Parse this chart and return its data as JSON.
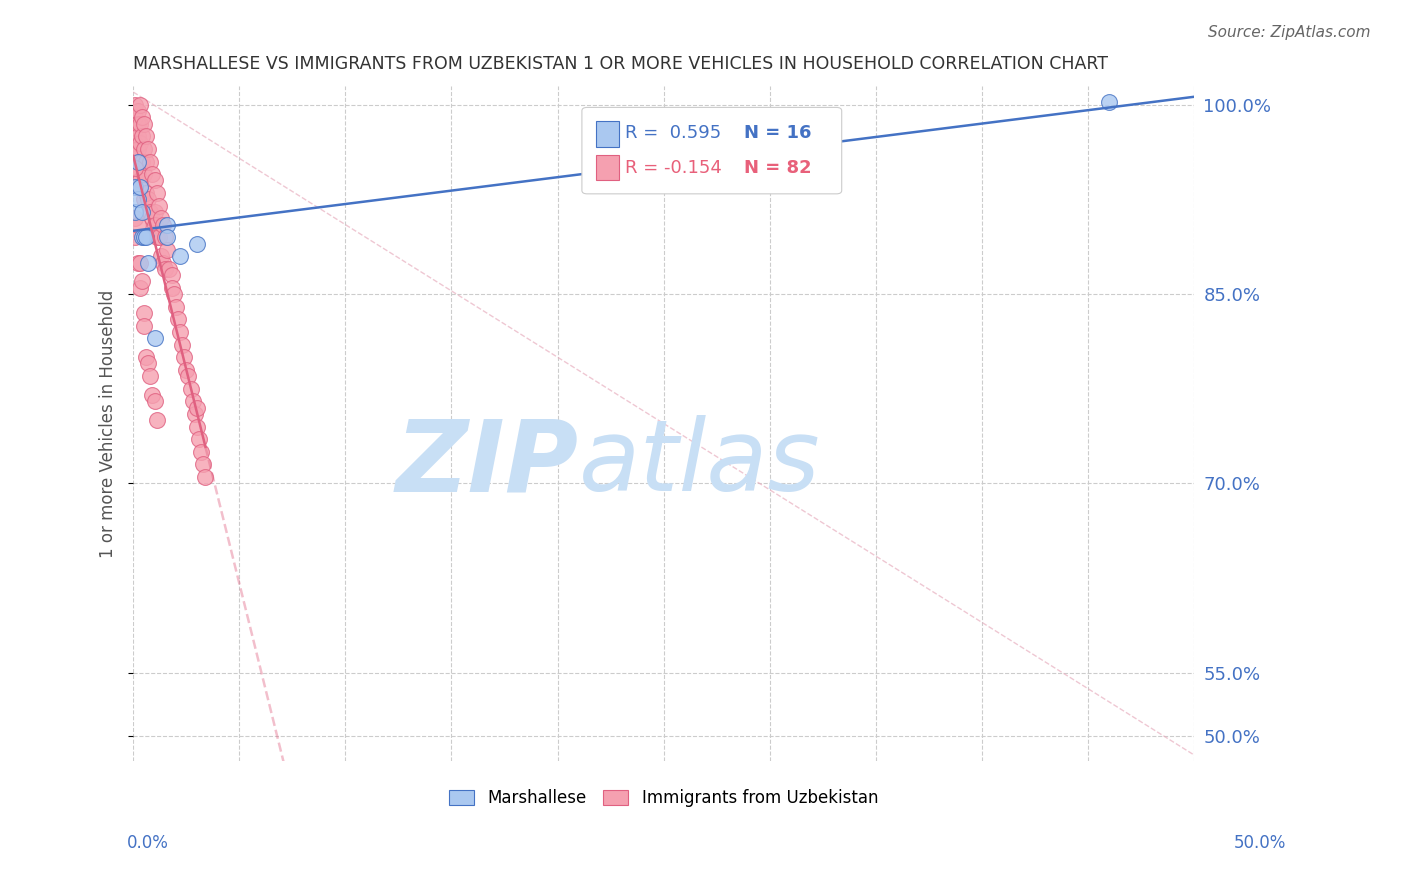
{
  "title": "MARSHALLESE VS IMMIGRANTS FROM UZBEKISTAN 1 OR MORE VEHICLES IN HOUSEHOLD CORRELATION CHART",
  "source": "Source: ZipAtlas.com",
  "ylabel": "1 or more Vehicles in Household",
  "xlim": [
    0.0,
    0.5
  ],
  "ylim": [
    0.48,
    1.015
  ],
  "xticks": [
    0.0,
    0.05,
    0.1,
    0.15,
    0.2,
    0.25,
    0.3,
    0.35,
    0.4,
    0.45,
    0.5
  ],
  "xticklabels_show": [
    "0.0%",
    "50.0%"
  ],
  "yticks": [
    0.5,
    0.55,
    0.7,
    0.85,
    1.0
  ],
  "yticklabels": [
    "50.0%",
    "55.0%",
    "70.0%",
    "85.0%",
    "100.0%"
  ],
  "right_ytick_color": "#4472c4",
  "grid_color": "#cccccc",
  "background_color": "#ffffff",
  "watermark_zip": "ZIP",
  "watermark_atlas": "atlas",
  "watermark_color": "#c8dff5",
  "legend_r1": "R =  0.595",
  "legend_n1": "N = 16",
  "legend_r2": "R = -0.154",
  "legend_n2": "N = 82",
  "legend_color1": "#4472c4",
  "legend_color2": "#e8607a",
  "series1_label": "Marshallese",
  "series2_label": "Immigrants from Uzbekistan",
  "dot_color1": "#aac8f0",
  "dot_color2": "#f5a0b0",
  "dot_edgecolor1": "#4472c4",
  "dot_edgecolor2": "#e06080",
  "dot_size": 130,
  "trend_color1": "#4472c4",
  "trend_color2": "#e06080",
  "trend_lw": 1.8,
  "marshallese_x": [
    0.001,
    0.001,
    0.002,
    0.002,
    0.003,
    0.004,
    0.004,
    0.005,
    0.006,
    0.007,
    0.01,
    0.016,
    0.016,
    0.022,
    0.03,
    0.46
  ],
  "marshallese_y": [
    0.935,
    0.915,
    0.955,
    0.925,
    0.935,
    0.915,
    0.895,
    0.895,
    0.895,
    0.875,
    0.815,
    0.905,
    0.895,
    0.88,
    0.89,
    1.002
  ],
  "uzbekistan_x": [
    0.001,
    0.001,
    0.001,
    0.001,
    0.001,
    0.002,
    0.002,
    0.002,
    0.002,
    0.002,
    0.002,
    0.003,
    0.003,
    0.003,
    0.003,
    0.003,
    0.004,
    0.004,
    0.004,
    0.005,
    0.005,
    0.005,
    0.005,
    0.006,
    0.006,
    0.006,
    0.007,
    0.007,
    0.008,
    0.008,
    0.009,
    0.009,
    0.01,
    0.01,
    0.01,
    0.011,
    0.011,
    0.012,
    0.012,
    0.013,
    0.013,
    0.014,
    0.014,
    0.015,
    0.015,
    0.016,
    0.017,
    0.018,
    0.018,
    0.019,
    0.02,
    0.021,
    0.022,
    0.023,
    0.024,
    0.025,
    0.026,
    0.027,
    0.028,
    0.029,
    0.03,
    0.03,
    0.031,
    0.032,
    0.033,
    0.034,
    0.001,
    0.001,
    0.001,
    0.002,
    0.002,
    0.003,
    0.003,
    0.004,
    0.005,
    0.005,
    0.006,
    0.007,
    0.008,
    0.009,
    0.01,
    0.011
  ],
  "uzbekistan_y": [
    1.0,
    0.99,
    0.98,
    0.97,
    0.96,
    0.995,
    0.985,
    0.975,
    0.965,
    0.945,
    0.935,
    1.0,
    0.985,
    0.97,
    0.955,
    0.94,
    0.99,
    0.975,
    0.955,
    0.985,
    0.965,
    0.945,
    0.925,
    0.975,
    0.955,
    0.93,
    0.965,
    0.925,
    0.955,
    0.915,
    0.945,
    0.91,
    0.94,
    0.915,
    0.905,
    0.93,
    0.895,
    0.92,
    0.895,
    0.91,
    0.88,
    0.905,
    0.875,
    0.895,
    0.87,
    0.885,
    0.87,
    0.865,
    0.855,
    0.85,
    0.84,
    0.83,
    0.82,
    0.81,
    0.8,
    0.79,
    0.785,
    0.775,
    0.765,
    0.755,
    0.76,
    0.745,
    0.735,
    0.725,
    0.715,
    0.705,
    0.95,
    0.91,
    0.895,
    0.905,
    0.875,
    0.875,
    0.855,
    0.86,
    0.835,
    0.825,
    0.8,
    0.795,
    0.785,
    0.77,
    0.765,
    0.75
  ],
  "diag_color": "#e8b0c0",
  "diag_lw": 1.0
}
